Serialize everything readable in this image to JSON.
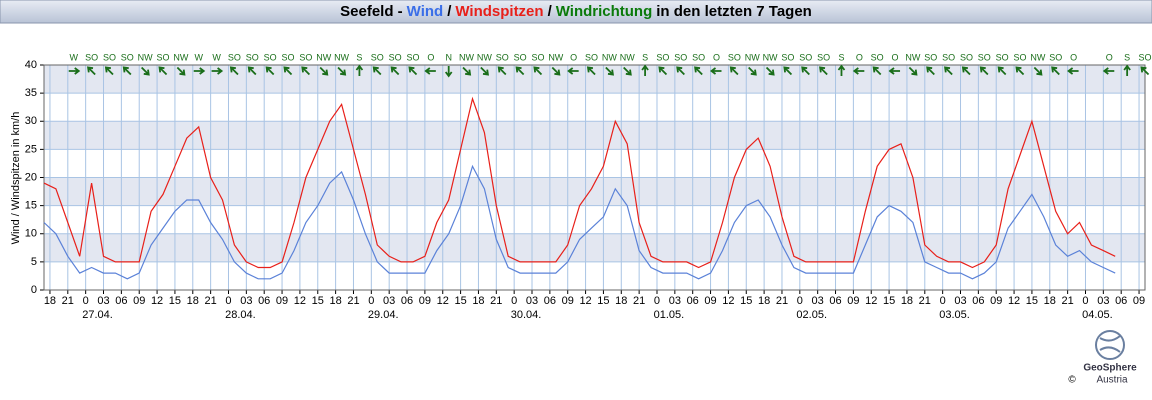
{
  "chart_data": {
    "type": "line",
    "title_parts": [
      {
        "text": "Seefeld -",
        "color": "#000000"
      },
      {
        "text": "Wind",
        "color": "#3a6ee8"
      },
      {
        "text": "/",
        "color": "#000000"
      },
      {
        "text": "Windspitzen",
        "color": "#e8201a"
      },
      {
        "text": "/",
        "color": "#000000"
      },
      {
        "text": "Windrichtung",
        "color": "#0a7a0a"
      },
      {
        "text": "in den letzten 7 Tagen",
        "color": "#000000"
      }
    ],
    "ylabel": "Wind / Windspitzen in km/h",
    "ylim": [
      0,
      40
    ],
    "yticks": [
      0,
      5,
      10,
      15,
      20,
      25,
      30,
      35,
      40
    ],
    "xlim": [
      -1,
      184
    ],
    "xticks": [
      {
        "value": 0,
        "label": "18"
      },
      {
        "value": 3,
        "label": "21"
      },
      {
        "value": 6,
        "label": "0"
      },
      {
        "value": 9,
        "label": "03"
      },
      {
        "value": 12,
        "label": "06"
      },
      {
        "value": 15,
        "label": "09"
      },
      {
        "value": 18,
        "label": "12"
      },
      {
        "value": 21,
        "label": "15"
      },
      {
        "value": 24,
        "label": "18"
      },
      {
        "value": 27,
        "label": "21"
      },
      {
        "value": 30,
        "label": "0"
      },
      {
        "value": 33,
        "label": "03"
      },
      {
        "value": 36,
        "label": "06"
      },
      {
        "value": 39,
        "label": "09"
      },
      {
        "value": 42,
        "label": "12"
      },
      {
        "value": 45,
        "label": "15"
      },
      {
        "value": 48,
        "label": "18"
      },
      {
        "value": 51,
        "label": "21"
      },
      {
        "value": 54,
        "label": "0"
      },
      {
        "value": 57,
        "label": "03"
      },
      {
        "value": 60,
        "label": "06"
      },
      {
        "value": 63,
        "label": "09"
      },
      {
        "value": 66,
        "label": "12"
      },
      {
        "value": 69,
        "label": "15"
      },
      {
        "value": 72,
        "label": "18"
      },
      {
        "value": 75,
        "label": "21"
      },
      {
        "value": 78,
        "label": "0"
      },
      {
        "value": 81,
        "label": "03"
      },
      {
        "value": 84,
        "label": "06"
      },
      {
        "value": 87,
        "label": "09"
      },
      {
        "value": 90,
        "label": "12"
      },
      {
        "value": 93,
        "label": "15"
      },
      {
        "value": 96,
        "label": "18"
      },
      {
        "value": 99,
        "label": "21"
      },
      {
        "value": 102,
        "label": "0"
      },
      {
        "value": 105,
        "label": "03"
      },
      {
        "value": 108,
        "label": "06"
      },
      {
        "value": 111,
        "label": "09"
      },
      {
        "value": 114,
        "label": "12"
      },
      {
        "value": 117,
        "label": "15"
      },
      {
        "value": 120,
        "label": "18"
      },
      {
        "value": 123,
        "label": "21"
      },
      {
        "value": 126,
        "label": "0"
      },
      {
        "value": 129,
        "label": "03"
      },
      {
        "value": 132,
        "label": "06"
      },
      {
        "value": 135,
        "label": "09"
      },
      {
        "value": 138,
        "label": "12"
      },
      {
        "value": 141,
        "label": "15"
      },
      {
        "value": 144,
        "label": "18"
      },
      {
        "value": 147,
        "label": "21"
      },
      {
        "value": 150,
        "label": "0"
      },
      {
        "value": 153,
        "label": "03"
      },
      {
        "value": 156,
        "label": "06"
      },
      {
        "value": 159,
        "label": "09"
      },
      {
        "value": 162,
        "label": "12"
      },
      {
        "value": 165,
        "label": "15"
      },
      {
        "value": 168,
        "label": "18"
      },
      {
        "value": 171,
        "label": "21"
      },
      {
        "value": 174,
        "label": "0"
      },
      {
        "value": 177,
        "label": "03"
      },
      {
        "value": 180,
        "label": "06"
      },
      {
        "value": 183,
        "label": "09"
      }
    ],
    "dates": [
      {
        "value": 8,
        "label": "27.04."
      },
      {
        "value": 32,
        "label": "28.04."
      },
      {
        "value": 56,
        "label": "29.04."
      },
      {
        "value": 80,
        "label": "30.04."
      },
      {
        "value": 104,
        "label": "01.05."
      },
      {
        "value": 128,
        "label": "02.05."
      },
      {
        "value": 152,
        "label": "03.05."
      },
      {
        "value": 176,
        "label": "04.05."
      }
    ],
    "bands": [
      [
        5,
        10
      ],
      [
        15,
        20
      ],
      [
        25,
        30
      ],
      [
        35,
        40
      ]
    ],
    "x": [
      -1,
      1,
      3,
      5,
      7,
      9,
      11,
      13,
      15,
      17,
      19,
      21,
      23,
      25,
      27,
      29,
      31,
      33,
      35,
      37,
      39,
      41,
      43,
      45,
      47,
      49,
      51,
      53,
      55,
      57,
      59,
      61,
      63,
      65,
      67,
      69,
      71,
      73,
      75,
      77,
      79,
      81,
      83,
      85,
      87,
      89,
      91,
      93,
      95,
      97,
      99,
      101,
      103,
      105,
      107,
      109,
      111,
      113,
      115,
      117,
      119,
      121,
      123,
      125,
      127,
      129,
      131,
      133,
      135,
      137,
      139,
      141,
      143,
      145,
      147,
      149,
      151,
      153,
      155,
      157,
      159,
      161,
      163,
      165,
      167,
      169,
      171,
      173,
      175,
      177,
      179
    ],
    "series": [
      {
        "name": "Wind",
        "color": "#5b82d8",
        "values": [
          12,
          10,
          6,
          3,
          4,
          3,
          3,
          2,
          3,
          8,
          11,
          14,
          16,
          16,
          12,
          9,
          5,
          3,
          2,
          2,
          3,
          7,
          12,
          15,
          19,
          21,
          16,
          10,
          5,
          3,
          3,
          3,
          3,
          7,
          10,
          15,
          22,
          18,
          9,
          4,
          3,
          3,
          3,
          3,
          5,
          9,
          11,
          13,
          18,
          15,
          7,
          4,
          3,
          3,
          3,
          2,
          3,
          7,
          12,
          15,
          16,
          13,
          8,
          4,
          3,
          3,
          3,
          3,
          3,
          8,
          13,
          15,
          14,
          12,
          5,
          4,
          3,
          3,
          2,
          3,
          5,
          11,
          14,
          17,
          13,
          8,
          6,
          7,
          5,
          4,
          3
        ]
      },
      {
        "name": "Windspitzen",
        "color": "#e8201a",
        "values": [
          19,
          18,
          12,
          6,
          19,
          6,
          5,
          5,
          5,
          14,
          17,
          22,
          27,
          29,
          20,
          16,
          8,
          5,
          4,
          4,
          5,
          12,
          20,
          25,
          30,
          33,
          25,
          17,
          8,
          6,
          5,
          5,
          6,
          12,
          16,
          25,
          34,
          28,
          15,
          6,
          5,
          5,
          5,
          5,
          8,
          15,
          18,
          22,
          30,
          26,
          12,
          6,
          5,
          5,
          5,
          4,
          5,
          12,
          20,
          25,
          27,
          22,
          13,
          6,
          5,
          5,
          5,
          5,
          5,
          14,
          22,
          25,
          26,
          20,
          8,
          6,
          5,
          5,
          4,
          5,
          8,
          18,
          24,
          30,
          22,
          14,
          10,
          12,
          8,
          7,
          6
        ]
      }
    ],
    "direction": {
      "name": "Windrichtung",
      "color": "#1a6e1a",
      "x": [
        4,
        7,
        10,
        13,
        16,
        19,
        22,
        25,
        28,
        31,
        34,
        37,
        40,
        43,
        46,
        49,
        52,
        55,
        58,
        61,
        64,
        67,
        70,
        73,
        76,
        79,
        82,
        85,
        88,
        91,
        94,
        97,
        100,
        103,
        106,
        109,
        112,
        115,
        118,
        121,
        124,
        127,
        130,
        133,
        136,
        139,
        142,
        145,
        148,
        151,
        154,
        157,
        160,
        163,
        166,
        169,
        172,
        175,
        178,
        181,
        184
      ],
      "values": [
        270,
        135,
        135,
        135,
        315,
        135,
        315,
        270,
        270,
        135,
        135,
        135,
        135,
        135,
        315,
        315,
        180,
        135,
        135,
        135,
        90,
        0,
        315,
        315,
        135,
        135,
        135,
        315,
        90,
        135,
        315,
        315,
        180,
        135,
        135,
        135,
        90,
        135,
        315,
        315,
        135,
        135,
        135,
        180,
        90,
        135,
        90,
        315,
        135,
        135,
        135,
        135,
        135,
        135,
        315,
        135,
        90,
        null,
        90,
        180,
        135
      ],
      "value_labels": [
        "W",
        "SO",
        "SO",
        "SO",
        "NW",
        "SO",
        "NW",
        "W",
        "W",
        "SO",
        "SO",
        "SO",
        "SO",
        "SO",
        "NW",
        "NW",
        "S",
        "SO",
        "SO",
        "SO",
        "O",
        "N",
        "NW",
        "NW",
        "SO",
        "SO",
        "SO",
        "NW",
        "O",
        "SO",
        "NW",
        "NW",
        "S",
        "SO",
        "SO",
        "SO",
        "O",
        "SO",
        "NW",
        "NW",
        "SO",
        "SO",
        "SO",
        "S",
        "O",
        "SO",
        "O",
        "NW",
        "SO",
        "SO",
        "SO",
        "SO",
        "SO",
        "SO",
        "NW",
        "SO",
        "O",
        null,
        "O",
        "S",
        "SO"
      ]
    },
    "logo": [
      "GeoSphere",
      "Austria",
      "©"
    ]
  }
}
